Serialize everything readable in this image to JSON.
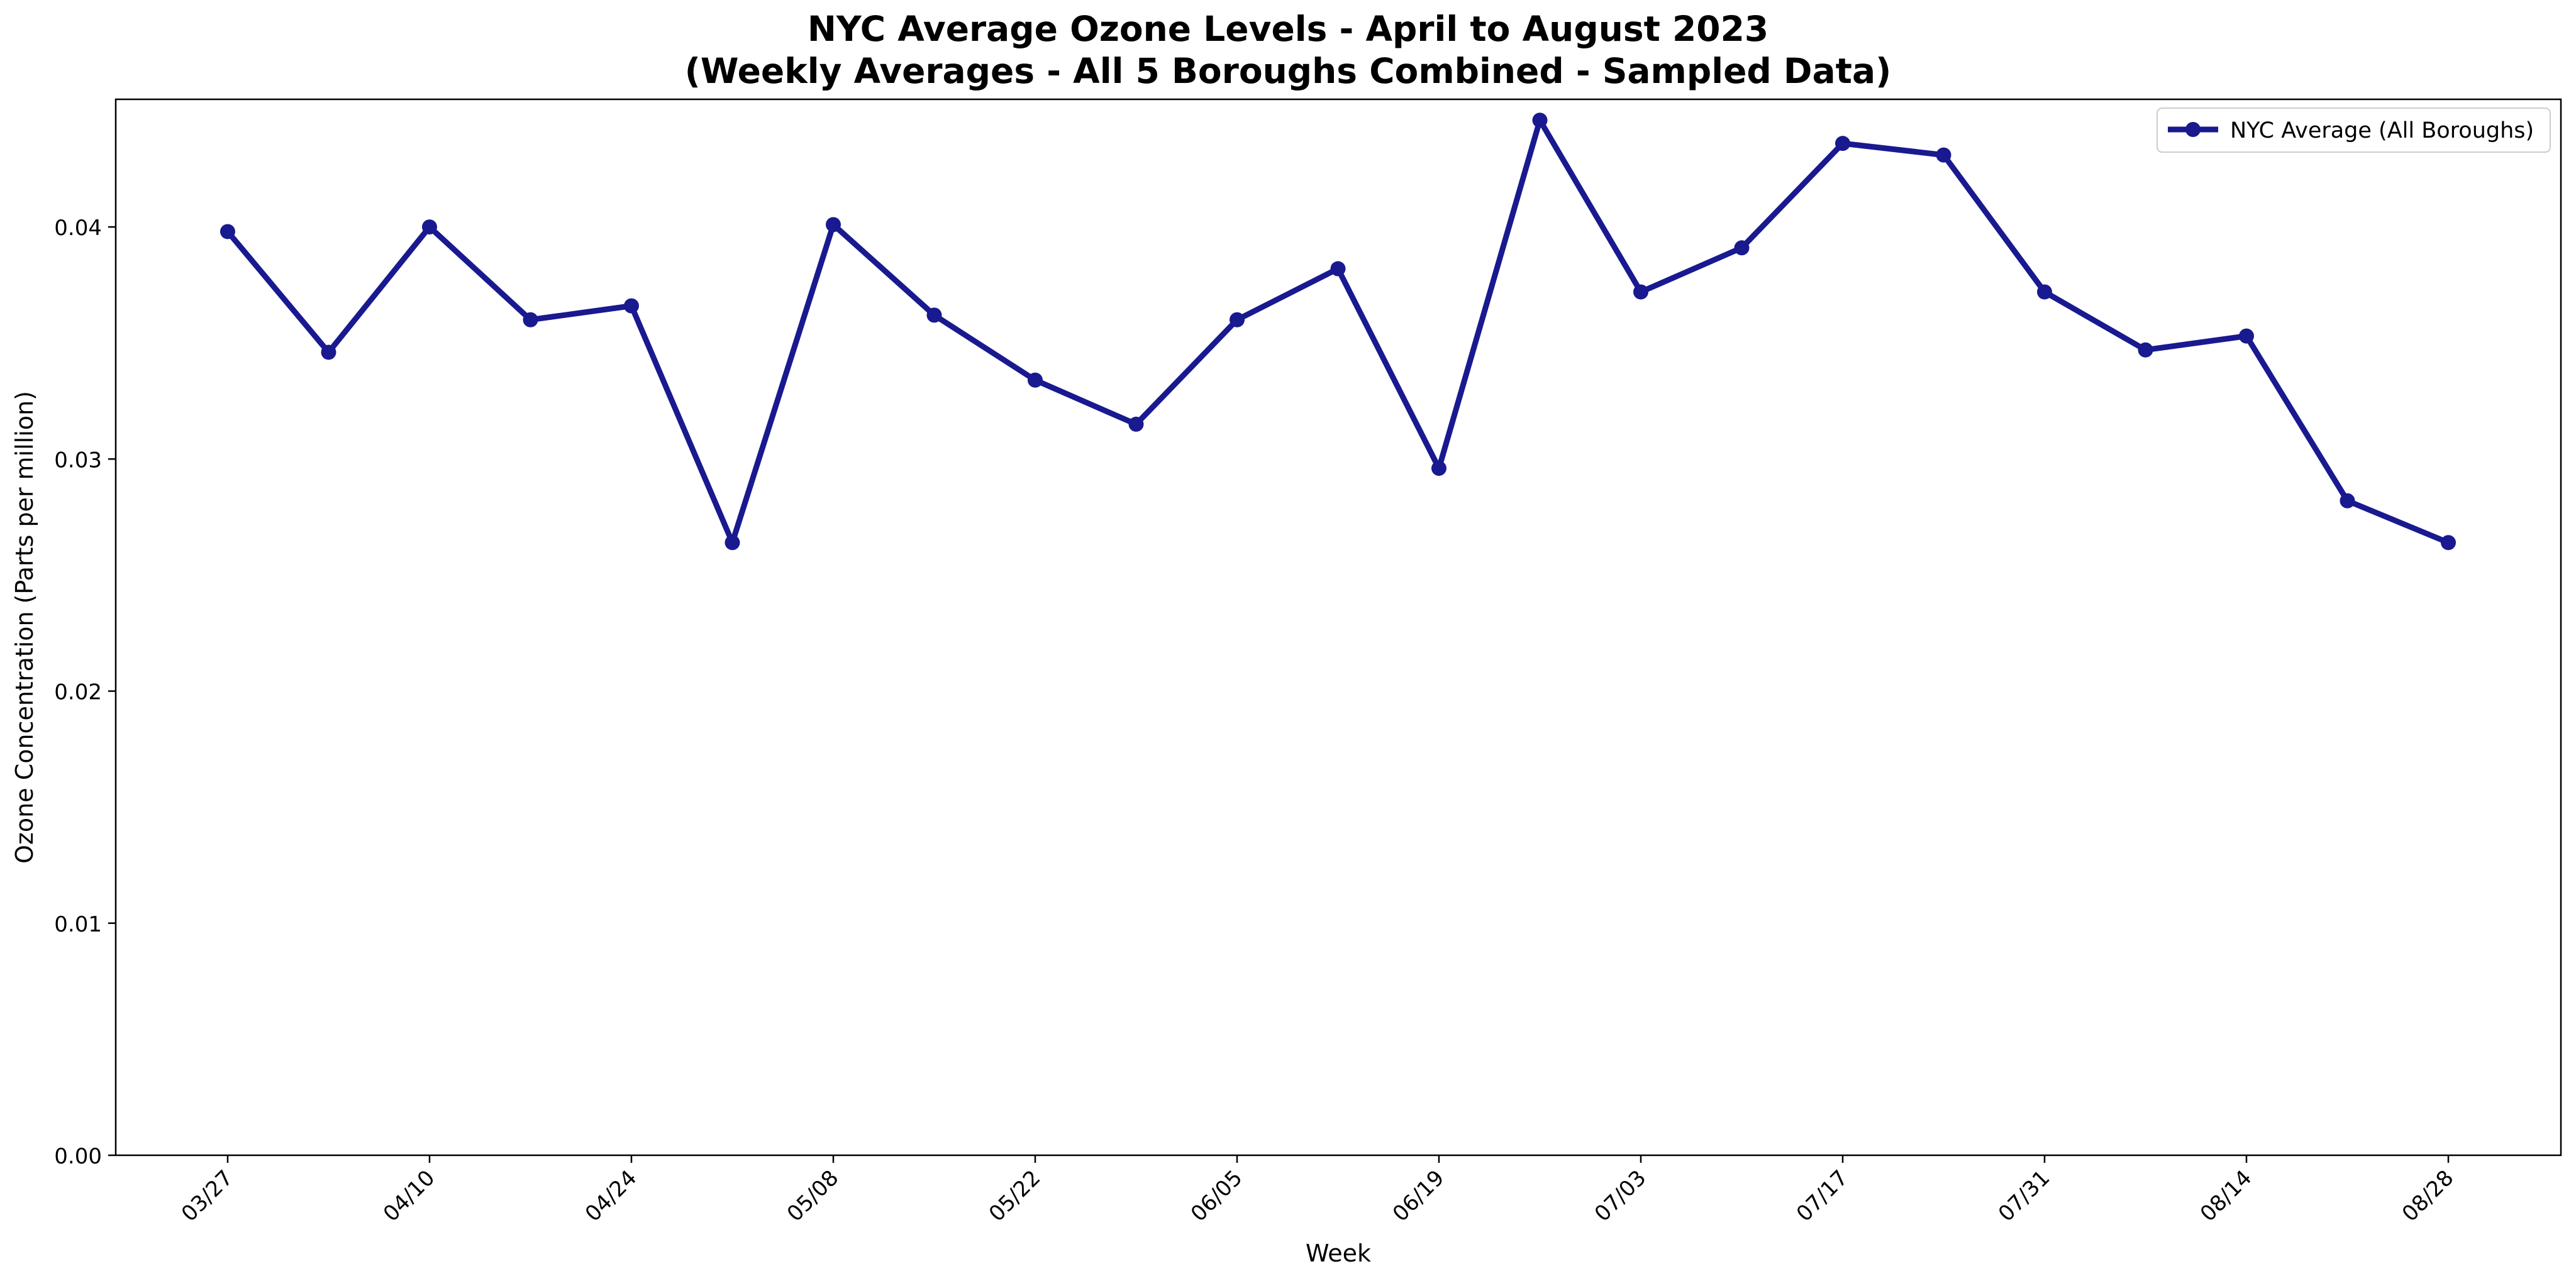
{
  "chart_data": {
    "type": "line",
    "title_line1": "NYC Average Ozone Levels - April to August 2023",
    "title_line2": "(Weekly Averages - All 5 Boroughs Combined - Sampled Data)",
    "xlabel": "Week",
    "ylabel": "Ozone Concentration (Parts per million)",
    "ylim": [
      0,
      0.0455
    ],
    "yticks": [
      "0.00",
      "0.01",
      "0.02",
      "0.03",
      "0.04"
    ],
    "ytick_values": [
      0,
      0.01,
      0.02,
      0.03,
      0.04
    ],
    "xtick_labels": [
      "03/27",
      "04/10",
      "04/24",
      "05/08",
      "05/22",
      "06/05",
      "06/19",
      "07/03",
      "07/17",
      "07/31",
      "08/14",
      "08/28"
    ],
    "x": [
      "03/27",
      "04/03",
      "04/10",
      "04/17",
      "04/24",
      "05/01",
      "05/08",
      "05/15",
      "05/22",
      "05/29",
      "06/05",
      "06/12",
      "06/19",
      "06/26",
      "07/03",
      "07/10",
      "07/17",
      "07/24",
      "07/31",
      "08/07",
      "08/14",
      "08/21",
      "08/28"
    ],
    "series": [
      {
        "name": "NYC Average (All Boroughs)",
        "color": "#191990",
        "values": [
          0.0398,
          0.0346,
          0.04,
          0.036,
          0.0366,
          0.0264,
          0.0401,
          0.0362,
          0.0334,
          0.0315,
          0.036,
          0.0382,
          0.0296,
          0.0446,
          0.0372,
          0.0391,
          0.0436,
          0.0431,
          0.0372,
          0.0347,
          0.0353,
          0.0282,
          0.0264
        ]
      }
    ],
    "grid": false,
    "legend_position": "top-right"
  }
}
